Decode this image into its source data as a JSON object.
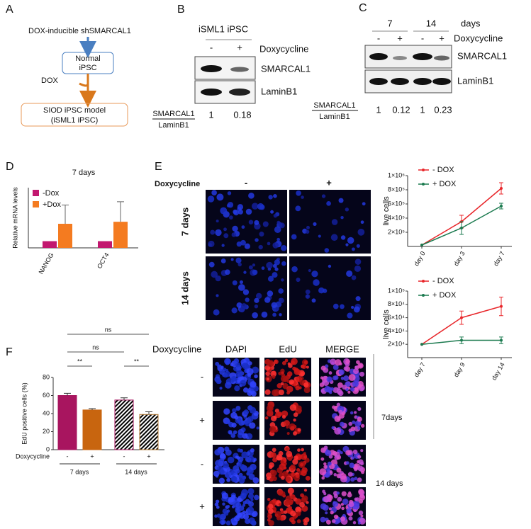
{
  "panel_a": {
    "letter": "A",
    "construct": "DOX-inducible  shSMARCAL1",
    "normal": [
      "Normal",
      "iPSC"
    ],
    "dox": "DOX",
    "model": [
      "SIOD iPSC model",
      "(iSML1 iPSC)"
    ]
  },
  "panel_b": {
    "letter": "B",
    "title": "iSML1 iPSC",
    "treatment": "Doxycycline",
    "lanes": [
      "-",
      "+"
    ],
    "bands": [
      "SMARCAL1",
      "LaminB1"
    ],
    "ratio_num": "SMARCAL1",
    "ratio_den": "LaminB1",
    "ratios": [
      1,
      0.18
    ]
  },
  "panel_c": {
    "letter": "C",
    "timepoints": [
      "7",
      "14"
    ],
    "days": "days",
    "treatment": "Doxycycline",
    "lanes": [
      "-",
      "+",
      "-",
      "+"
    ],
    "bands": [
      "SMARCAL1",
      "LaminB1"
    ],
    "ratio_num": "SMARCAL1",
    "ratio_den": "LaminB1",
    "ratios": [
      1,
      0.12,
      1,
      0.23
    ]
  },
  "panel_d": {
    "letter": "D",
    "chart": {
      "type": "bar",
      "title": "7 days",
      "ylabel": "Relative mRNA levels",
      "categories": [
        "NANOG",
        "OCT4"
      ],
      "ylim": [
        0,
        9
      ],
      "series": [
        {
          "name": "-Dox",
          "color": "#c2186f",
          "values": [
            1,
            1
          ],
          "errors": [
            0,
            0
          ]
        },
        {
          "name": "+Dox",
          "color": "#f47b20",
          "values": [
            3.6,
            3.9
          ],
          "errors": [
            2.8,
            3
          ]
        }
      ]
    }
  },
  "panel_e": {
    "letter": "E",
    "treatment": "Doxycycline",
    "columns": [
      "-",
      "+"
    ],
    "rows": [
      "7 days",
      "14 days"
    ],
    "charts": [
      {
        "type": "line",
        "ylabel": "live cells",
        "categories": [
          "day 0",
          "day 3",
          "day 7"
        ],
        "ylim": [
          0,
          1000000
        ],
        "yticks": [
          {
            "value": 200000,
            "label": "2×10⁵"
          },
          {
            "value": 400000,
            "label": "4×10⁵"
          },
          {
            "value": 600000,
            "label": "6×10⁵"
          },
          {
            "value": 800000,
            "label": "8×10⁵"
          },
          {
            "value": 1000000,
            "label": "1×10⁶"
          }
        ],
        "series": [
          {
            "name": "- DOX",
            "color": "#e8262a",
            "values": [
              20000,
              350000,
              820000
            ],
            "errors": [
              0,
              90000,
              80000
            ]
          },
          {
            "name": "+ DOX",
            "color": "#1b7a4f",
            "values": [
              20000,
              260000,
              570000
            ],
            "errors": [
              0,
              90000,
              40000
            ]
          }
        ]
      },
      {
        "type": "line",
        "ylabel": "live cells",
        "categories": [
          "day 7",
          "day 9",
          "day 14"
        ],
        "ylim": [
          0,
          100000
        ],
        "yticks": [
          {
            "value": 20000,
            "label": "2×10⁴"
          },
          {
            "value": 40000,
            "label": "4×10⁴"
          },
          {
            "value": 60000,
            "label": "6×10⁴"
          },
          {
            "value": 80000,
            "label": "8×10⁴"
          },
          {
            "value": 100000,
            "label": "1×10⁵"
          }
        ],
        "series": [
          {
            "name": "- DOX",
            "color": "#e8262a",
            "values": [
              20000,
              60000,
              77000
            ],
            "errors": [
              0,
              10000,
              14000
            ]
          },
          {
            "name": "+ DOX",
            "color": "#1b7a4f",
            "values": [
              20000,
              26000,
              26000
            ],
            "errors": [
              0,
              5000,
              5000
            ]
          }
        ]
      }
    ]
  },
  "panel_f": {
    "letter": "F",
    "chart": {
      "type": "bar",
      "ylabel": "EdU positive cells (%)",
      "xlabel": "Doxycycline",
      "categories": [
        "-",
        "+",
        "-",
        "+"
      ],
      "groups": [
        "7 days",
        "14 days"
      ],
      "values": [
        60,
        44,
        55,
        39
      ],
      "errors": [
        2.5,
        1.5,
        2.5,
        3
      ],
      "colors": [
        "#a8155f",
        "#c8650f",
        "#a8155f",
        "#b0742e"
      ],
      "hatched": [
        false,
        false,
        true,
        true
      ],
      "ylim": [
        0,
        80
      ],
      "yticks": [
        0,
        20,
        40,
        60,
        80
      ],
      "significance": [
        "**",
        "**",
        "ns",
        "ns"
      ]
    },
    "images": {
      "treatment": "Doxycycline",
      "channels": [
        "DAPI",
        "EdU",
        "MERGE"
      ],
      "rows": [
        "-",
        "+",
        "-",
        "+"
      ],
      "groups": [
        "7days",
        "14 days"
      ]
    }
  }
}
